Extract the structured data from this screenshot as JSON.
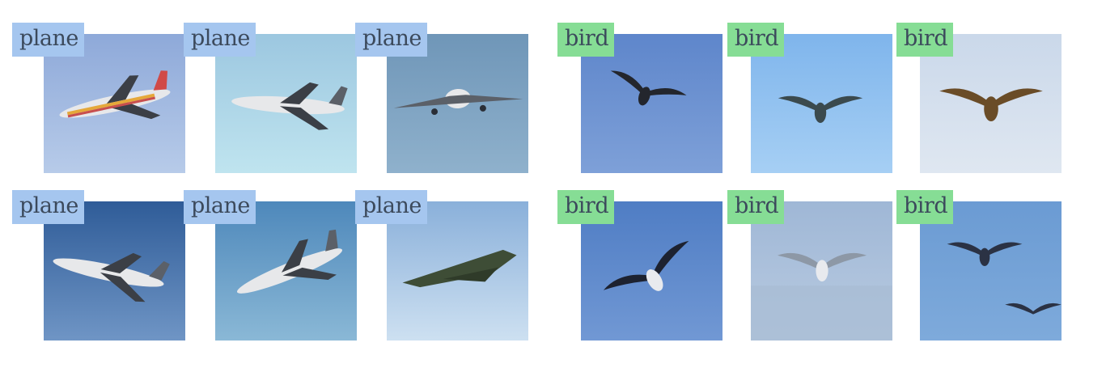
{
  "groups": [
    {
      "class": "plane",
      "label_color": "#a5c6ef",
      "images": [
        {
          "label": "plane",
          "subject": "airliner-colorful",
          "sky": [
            "#8ea9d9",
            "#b7cbe9"
          ]
        },
        {
          "label": "plane",
          "subject": "airliner-side",
          "sky": [
            "#9cc7e0",
            "#bfe4ef"
          ]
        },
        {
          "label": "plane",
          "subject": "airliner-front",
          "sky": [
            "#6f96b8",
            "#8fb1cc"
          ]
        },
        {
          "label": "plane",
          "subject": "airliner-blue-sky",
          "sky": [
            "#2f5c98",
            "#6f95c5"
          ]
        },
        {
          "label": "plane",
          "subject": "airliner-climbing",
          "sky": [
            "#4e88bb",
            "#8ab8d6"
          ]
        },
        {
          "label": "plane",
          "subject": "jet-green",
          "sky": [
            "#8ab0da",
            "#cde0f1"
          ]
        }
      ]
    },
    {
      "class": "bird",
      "label_color": "#86dd95",
      "images": [
        {
          "label": "bird",
          "subject": "bird-soaring",
          "sky": [
            "#5e86cb",
            "#7ea0d8"
          ]
        },
        {
          "label": "bird",
          "subject": "bird-gliding",
          "sky": [
            "#7fb5ec",
            "#a6cff4"
          ]
        },
        {
          "label": "bird",
          "subject": "bird-hawk",
          "sky": [
            "#cad8ea",
            "#dfe7f1"
          ]
        },
        {
          "label": "bird",
          "subject": "gull-flying",
          "sky": [
            "#4f7dc4",
            "#7198d4"
          ]
        },
        {
          "label": "bird",
          "subject": "gull-over-sea",
          "sky": [
            "#9fb7d6",
            "#b9cbe1"
          ]
        },
        {
          "label": "bird",
          "subject": "birds-pair",
          "sky": [
            "#6b9bd3",
            "#7eaadb"
          ]
        }
      ]
    }
  ]
}
